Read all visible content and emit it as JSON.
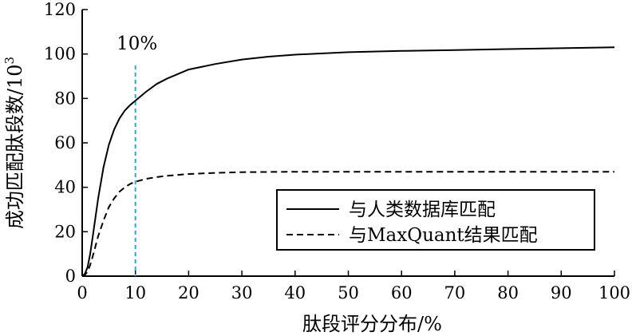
{
  "chart_data": {
    "type": "line",
    "xlabel": "肽段评分分布/%",
    "ylabel": "成功匹配肽段数/10",
    "ylabel_exponent": "3",
    "xlim": [
      0,
      100
    ],
    "ylim": [
      0,
      120
    ],
    "x_ticks": [
      "0",
      "10",
      "20",
      "30",
      "40",
      "50",
      "60",
      "70",
      "80",
      "90",
      "100"
    ],
    "y_ticks": [
      "0",
      "20",
      "40",
      "60",
      "80",
      "100",
      "120"
    ],
    "grid": false,
    "legend_position": "lower-right",
    "annotation": {
      "label": "10%",
      "x": 10,
      "color": "#29a8e0"
    },
    "series": [
      {
        "name": "与人类数据库匹配",
        "style": "solid",
        "color": "#000000",
        "x": [
          0,
          0.5,
          1,
          1.5,
          2,
          3,
          4,
          5,
          6,
          7,
          8,
          9,
          10,
          12,
          14,
          16,
          18,
          20,
          22,
          25,
          30,
          35,
          40,
          50,
          60,
          70,
          80,
          90,
          100
        ],
        "y": [
          0,
          1,
          4,
          10,
          18,
          35,
          49,
          59,
          66,
          71,
          74.5,
          77,
          79,
          83,
          86.5,
          89,
          91,
          93,
          94,
          95.5,
          97.5,
          98.8,
          99.7,
          100.8,
          101.4,
          101.8,
          102.2,
          102.6,
          103
        ]
      },
      {
        "name": "与MaxQuant结果匹配",
        "style": "dashed",
        "color": "#000000",
        "x": [
          0,
          0.5,
          1,
          1.5,
          2,
          3,
          4,
          5,
          6,
          7,
          8,
          9,
          10,
          12,
          14,
          16,
          18,
          20,
          25,
          30,
          40,
          50,
          60,
          70,
          80,
          90,
          100
        ],
        "y": [
          0,
          0.5,
          2,
          5,
          9,
          18,
          25,
          31,
          35,
          38,
          40,
          41.5,
          42.5,
          43.8,
          44.6,
          45.2,
          45.6,
          46,
          46.5,
          46.8,
          47,
          47,
          47,
          47,
          47,
          47,
          47
        ]
      }
    ]
  }
}
